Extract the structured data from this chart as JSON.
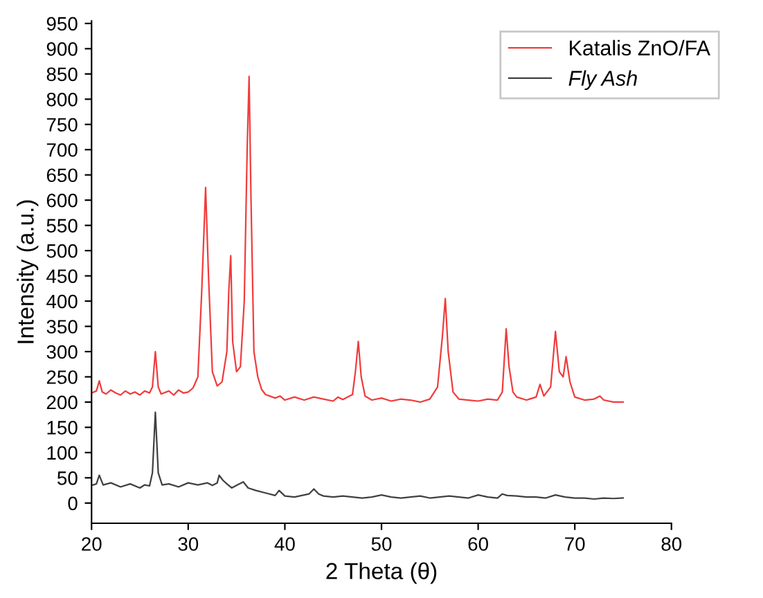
{
  "chart_data": {
    "type": "line",
    "xlabel": "2 Theta (θ)",
    "ylabel": "Intensity (a.u.)",
    "xlim": [
      20,
      80
    ],
    "ylim": [
      -40,
      955
    ],
    "xticks": [
      20,
      30,
      40,
      50,
      60,
      70,
      80
    ],
    "yticks": [
      0,
      50,
      100,
      150,
      200,
      250,
      300,
      350,
      400,
      450,
      500,
      550,
      600,
      650,
      700,
      750,
      800,
      850,
      900,
      950
    ],
    "legend": "top right",
    "grid": false,
    "marker": "none",
    "line_style": "solid",
    "series": [
      {
        "name": "Katalis ZnO/FA",
        "color": "#f03c3c",
        "x": [
          20,
          20.5,
          20.8,
          21.1,
          21.5,
          22,
          22.5,
          23,
          23.5,
          24,
          24.5,
          25,
          25.5,
          26,
          26.3,
          26.6,
          26.9,
          27.2,
          28,
          28.5,
          29,
          29.5,
          30,
          30.5,
          31,
          31.4,
          31.8,
          32.1,
          32.5,
          33,
          33.5,
          34,
          34.2,
          34.4,
          34.6,
          35,
          35.4,
          35.8,
          36.1,
          36.3,
          36.5,
          36.8,
          37.2,
          37.6,
          38,
          39,
          39.5,
          40,
          41,
          42,
          43,
          44,
          45,
          45.5,
          46,
          47,
          47.3,
          47.6,
          47.9,
          48.3,
          49,
          50,
          51,
          52,
          53,
          54,
          55,
          55.8,
          56.3,
          56.6,
          56.9,
          57.4,
          58,
          59,
          60,
          61,
          62,
          62.5,
          62.9,
          63.2,
          63.6,
          64,
          65,
          66,
          66.4,
          66.8,
          67.5,
          68,
          68.4,
          68.8,
          69.1,
          69.5,
          70,
          71,
          72,
          72.6,
          73,
          74,
          75
        ],
        "values": [
          218,
          222,
          242,
          220,
          216,
          224,
          218,
          214,
          222,
          216,
          220,
          214,
          222,
          218,
          230,
          300,
          230,
          216,
          222,
          214,
          224,
          218,
          220,
          228,
          250,
          420,
          625,
          450,
          260,
          232,
          240,
          300,
          420,
          490,
          320,
          260,
          270,
          400,
          700,
          845,
          600,
          300,
          250,
          225,
          215,
          208,
          212,
          204,
          210,
          204,
          210,
          206,
          202,
          210,
          205,
          215,
          260,
          320,
          250,
          212,
          204,
          208,
          202,
          206,
          204,
          200,
          206,
          230,
          330,
          405,
          300,
          220,
          206,
          204,
          202,
          206,
          204,
          220,
          345,
          270,
          220,
          210,
          204,
          210,
          235,
          212,
          230,
          340,
          260,
          250,
          290,
          240,
          210,
          204,
          206,
          212,
          204,
          200,
          200
        ]
      },
      {
        "name": "Fly Ash",
        "color": "#404040",
        "x": [
          20,
          20.5,
          20.8,
          21.2,
          22,
          23,
          24,
          25,
          25.5,
          26,
          26.3,
          26.6,
          26.9,
          27.3,
          28,
          29,
          30,
          31,
          32,
          32.5,
          33,
          33.2,
          33.6,
          34,
          34.5,
          35,
          35.7,
          36.2,
          37,
          38,
          39,
          39.4,
          40,
          41,
          42,
          42.5,
          43,
          43.5,
          44,
          45,
          46,
          47,
          48,
          49,
          50,
          51,
          52,
          53,
          54,
          55,
          56,
          57,
          58,
          59,
          60,
          61,
          62,
          62.5,
          63,
          64,
          65,
          66,
          67,
          68,
          69,
          70,
          71,
          72,
          73,
          74,
          75
        ],
        "values": [
          35,
          38,
          55,
          36,
          40,
          32,
          38,
          30,
          36,
          34,
          60,
          180,
          60,
          36,
          38,
          32,
          40,
          36,
          40,
          35,
          40,
          55,
          45,
          38,
          30,
          35,
          42,
          30,
          25,
          20,
          15,
          25,
          14,
          12,
          16,
          18,
          28,
          18,
          14,
          12,
          14,
          12,
          10,
          12,
          16,
          12,
          10,
          12,
          14,
          10,
          12,
          14,
          12,
          10,
          16,
          12,
          10,
          18,
          15,
          14,
          12,
          12,
          10,
          16,
          12,
          10,
          10,
          8,
          10,
          9,
          10
        ]
      }
    ]
  }
}
